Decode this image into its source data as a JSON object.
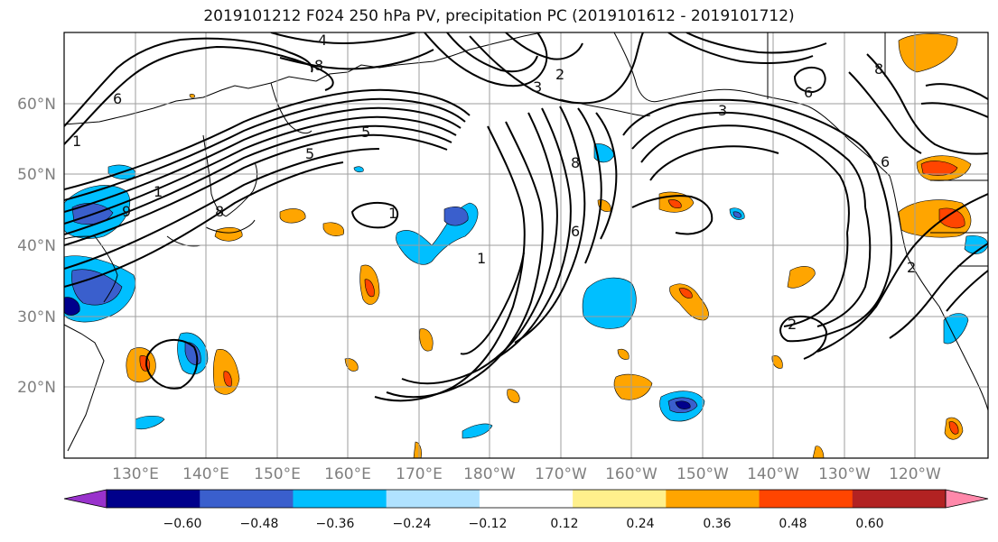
{
  "title": "2019101212 F024 250 hPa PV, precipitation PC (2019101612 - 2019101712)",
  "lat_labels": [
    "60°N",
    "50°N",
    "40°N",
    "30°N",
    "20°N"
  ],
  "lon_labels": [
    "130°E",
    "140°E",
    "150°E",
    "160°E",
    "170°E",
    "180°W",
    "170°W",
    "160°W",
    "150°W",
    "140°W",
    "130°W",
    "120°W"
  ],
  "colorbar": {
    "ticks": [
      "−0.60",
      "−0.48",
      "−0.36",
      "−0.24",
      "−0.12",
      "0.12",
      "0.24",
      "0.36",
      "0.48",
      "0.60"
    ],
    "colors": [
      "#9932cc",
      "#00008b",
      "#3a5fcd",
      "#00bfff",
      "#b0e2ff",
      "#ffffff",
      "#fff08c",
      "#ffa500",
      "#ff4500",
      "#b22222",
      "#ff88aa"
    ]
  },
  "contour_labels": [
    "4",
    "8",
    "2",
    "3",
    "6",
    "8",
    "6",
    "3",
    "8",
    "6",
    "1",
    "6",
    "5",
    "1",
    "8",
    "1",
    "9",
    "2",
    "1",
    "2",
    "5"
  ],
  "colors": {
    "contour": "#000000",
    "grid": "#9e9e9e",
    "coast": "#000000"
  }
}
